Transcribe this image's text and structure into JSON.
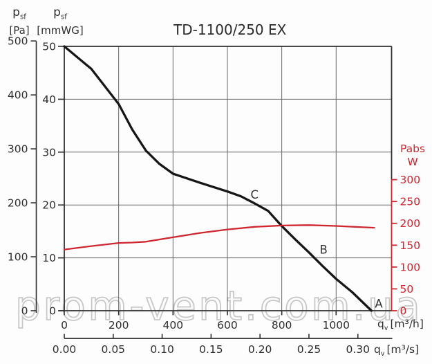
{
  "title": "TD-1100/250 EX",
  "watermark": "prom-vent.com.ua",
  "header": {
    "pa": {
      "sym": "p",
      "sub": "sf",
      "unit": "[Pa]"
    },
    "mmwg": {
      "sym": "p",
      "sub": "sf",
      "unit": "[mmWG]"
    }
  },
  "right_axis_header": {
    "name": "Pabs",
    "unit": "W"
  },
  "flow_axis_h": {
    "sym": "q",
    "sub": "v",
    "unit": "[m³/h]"
  },
  "flow_axis_s": {
    "sym": "q",
    "sub": "v",
    "unit": "[m³/s]"
  },
  "colors": {
    "accent_red": "#cf2630",
    "axis_dark": "#2f2f2f",
    "grid_gray": "#666666",
    "curve_black": "#161616",
    "watermark_gray": "#c8c8c8"
  },
  "chart_data": {
    "type": "line",
    "title": "TD-1100/250 EX",
    "grid": true,
    "x_axis": {
      "label": "qv [m³/h]",
      "ticks": [
        0,
        200,
        400,
        600,
        800,
        1000
      ],
      "range": [
        0,
        1204
      ]
    },
    "x_axis_secondary": {
      "label": "qv [m³/s]",
      "tick_labels": [
        "0.00",
        "0.05",
        "0.10",
        "0.15",
        "0.20",
        "0.25",
        "0.30"
      ],
      "range": [
        0,
        0.334
      ]
    },
    "y_axis_pa": {
      "label": "psf [Pa]",
      "ticks": [
        0,
        100,
        200,
        300,
        400,
        500
      ],
      "range": [
        0,
        500
      ]
    },
    "y_axis_mmwg": {
      "label": "psf [mmWG]",
      "ticks": [
        0,
        10,
        20,
        30,
        40,
        50
      ],
      "range": [
        0,
        50
      ]
    },
    "y_axis_power": {
      "label": "Pabs W",
      "ticks": [
        0,
        50,
        100,
        150,
        200,
        250,
        300
      ],
      "range": [
        0,
        300
      ]
    },
    "series": [
      {
        "name": "static-pressure-curve",
        "axis": "pa",
        "color": "#161616",
        "points": [
          [
            0,
            490
          ],
          [
            100,
            448
          ],
          [
            200,
            383
          ],
          [
            250,
            336
          ],
          [
            300,
            297
          ],
          [
            350,
            272
          ],
          [
            400,
            254
          ],
          [
            500,
            237
          ],
          [
            600,
            221
          ],
          [
            650,
            212
          ],
          [
            700,
            199
          ],
          [
            750,
            185
          ],
          [
            800,
            157
          ],
          [
            850,
            132
          ],
          [
            900,
            108
          ],
          [
            950,
            83
          ],
          [
            1000,
            59
          ],
          [
            1060,
            34
          ],
          [
            1130,
            0
          ]
        ]
      },
      {
        "name": "absorbed-power-curve",
        "axis": "power",
        "color": "#cf2630",
        "points": [
          [
            0,
            140
          ],
          [
            100,
            148
          ],
          [
            200,
            155
          ],
          [
            250,
            156
          ],
          [
            300,
            158
          ],
          [
            400,
            168
          ],
          [
            500,
            178
          ],
          [
            600,
            186
          ],
          [
            700,
            192
          ],
          [
            800,
            195
          ],
          [
            900,
            196
          ],
          [
            1000,
            194
          ],
          [
            1100,
            191
          ],
          [
            1140,
            190
          ]
        ]
      }
    ],
    "annotations": [
      {
        "text": "A",
        "flow_m3h": 1157,
        "pa": 13
      },
      {
        "text": "B",
        "flow_m3h": 954,
        "pa": 113
      },
      {
        "text": "C",
        "flow_m3h": 700,
        "pa": 215
      }
    ]
  }
}
